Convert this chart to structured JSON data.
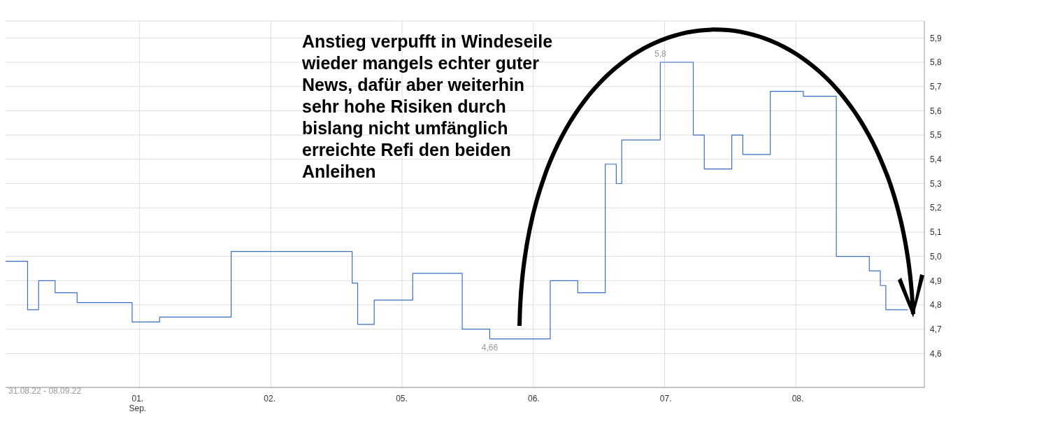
{
  "chart_data": {
    "type": "step",
    "annotations": [
      {
        "text": "4,66",
        "y": 4.66
      },
      {
        "text": "5,8",
        "y": 5.8
      },
      "31.08.22 - 08.09.22",
      "Anstieg verpufft in Windeseile wieder mangels echter guter News, dafür aber weiterhin sehr hohe Risiken durch bislang nicht umfänglich erreichte Refi den beiden Anleihen"
    ],
    "categories": [
      null,
      null,
      null,
      null,
      null,
      null,
      null,
      null,
      null,
      null,
      null,
      null,
      null,
      null,
      null,
      null,
      null,
      null,
      null,
      null,
      null,
      null,
      null,
      null,
      "01.\nSep.",
      null,
      null,
      null,
      null,
      null,
      null,
      null,
      null,
      null,
      null,
      null,
      null,
      null,
      null,
      null,
      null,
      null,
      null,
      null,
      null,
      null,
      null,
      null,
      "02.",
      null,
      null,
      null,
      null,
      null,
      null,
      null,
      null,
      null,
      null,
      null,
      null,
      null,
      null,
      null,
      null,
      null,
      null,
      null,
      null,
      null,
      null,
      null,
      "05.",
      null,
      null,
      null,
      null,
      null,
      null,
      null,
      null,
      null,
      null,
      null,
      null,
      null,
      null,
      null,
      null,
      null,
      null,
      null,
      null,
      null,
      null,
      null,
      "06.",
      null,
      null,
      null,
      null,
      null,
      null,
      null,
      null,
      null,
      null,
      null,
      null,
      null,
      null,
      null,
      null,
      null,
      null,
      null,
      null,
      null,
      null,
      null,
      "07.",
      null,
      null,
      null,
      null,
      null,
      null,
      null,
      null,
      null,
      null,
      null,
      null,
      null,
      null,
      null,
      null,
      null,
      null,
      null,
      null,
      null,
      null,
      null,
      "08.",
      null,
      null,
      null,
      null,
      null,
      null,
      null,
      null,
      null,
      null,
      null,
      null,
      null,
      null,
      null,
      null,
      null,
      null,
      null,
      null,
      null,
      null,
      null
    ],
    "series": [
      {
        "color": "#3a6fc4",
        "values": [
          4.98,
          4.98,
          4.98,
          4.98,
          4.78,
          4.78,
          4.9,
          4.9,
          4.9,
          4.85,
          4.85,
          4.85,
          4.85,
          4.81,
          4.81,
          4.81,
          4.81,
          4.81,
          4.81,
          4.81,
          4.81,
          4.81,
          4.81,
          4.73,
          4.73,
          4.73,
          4.73,
          4.73,
          4.75,
          4.75,
          4.75,
          4.75,
          4.75,
          4.75,
          4.75,
          4.75,
          4.75,
          4.75,
          4.75,
          4.75,
          4.75,
          5.02,
          5.02,
          5.02,
          5.02,
          5.02,
          5.02,
          5.02,
          5.02,
          5.02,
          5.02,
          5.02,
          5.02,
          5.02,
          5.02,
          5.02,
          5.02,
          5.02,
          5.02,
          5.02,
          5.02,
          5.02,
          5.02,
          4.89,
          4.72,
          4.72,
          4.72,
          4.82,
          4.82,
          4.82,
          4.82,
          4.82,
          4.82,
          4.82,
          4.93,
          4.93,
          4.93,
          4.93,
          4.93,
          4.93,
          4.93,
          4.93,
          4.93,
          4.7,
          4.7,
          4.7,
          4.7,
          4.7,
          4.66,
          4.66,
          4.66,
          4.66,
          4.66,
          4.66,
          4.66,
          4.66,
          4.66,
          4.66,
          4.66,
          4.9,
          4.9,
          4.9,
          4.9,
          4.9,
          4.85,
          4.85,
          4.85,
          4.85,
          4.85,
          5.38,
          5.38,
          5.3,
          5.48,
          5.48,
          5.48,
          5.48,
          5.48,
          5.48,
          5.48,
          5.8,
          5.8,
          5.8,
          5.8,
          5.8,
          5.8,
          5.5,
          5.5,
          5.36,
          5.36,
          5.36,
          5.36,
          5.36,
          5.5,
          5.5,
          5.42,
          5.42,
          5.42,
          5.42,
          5.42,
          5.68,
          5.68,
          5.68,
          5.68,
          5.68,
          5.68,
          5.66,
          5.66,
          5.66,
          5.66,
          5.66,
          5.66,
          5.0,
          5.0,
          5.0,
          5.0,
          5.0,
          5.0,
          4.94,
          4.94,
          4.88,
          4.78,
          4.78,
          4.78,
          4.78,
          4.78,
          null,
          null,
          null
        ]
      }
    ],
    "ylim": [
      4.46,
      5.97
    ],
    "yticks": [
      {
        "value": 4.6,
        "label": "4,6"
      },
      {
        "value": 4.7,
        "label": "4,7"
      },
      {
        "value": 4.8,
        "label": "4,8"
      },
      {
        "value": 4.9,
        "label": "4,9"
      },
      {
        "value": 5.0,
        "label": "5,0"
      },
      {
        "value": 5.1,
        "label": "5,1"
      },
      {
        "value": 5.2,
        "label": "5,2"
      },
      {
        "value": 5.3,
        "label": "5,3"
      },
      {
        "value": 5.4,
        "label": "5,4"
      },
      {
        "value": 5.5,
        "label": "5,5"
      },
      {
        "value": 5.6,
        "label": "5,6"
      },
      {
        "value": 5.7,
        "label": "5,7"
      },
      {
        "value": 5.8,
        "label": "5,8"
      },
      {
        "value": 5.9,
        "label": "5,9"
      }
    ],
    "grid": true,
    "legend": false,
    "marker": "none",
    "line_style": "solid"
  }
}
